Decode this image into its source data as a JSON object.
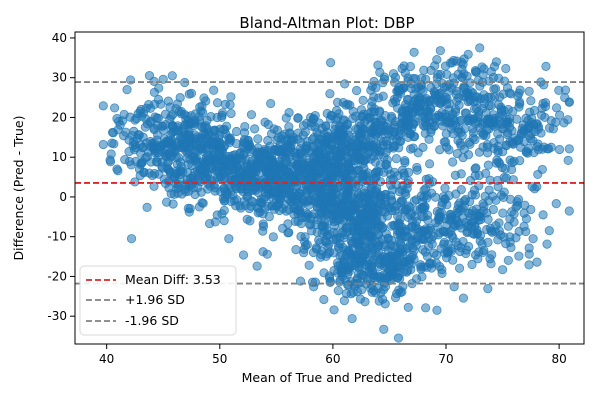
{
  "chart_data": {
    "type": "scatter",
    "title": "Bland-Altman Plot: DBP",
    "xlabel": "Mean of True and Predicted",
    "ylabel": "Difference (Pred - True)",
    "xlim": [
      37.2,
      82.2
    ],
    "ylim": [
      -37.0,
      41.5
    ],
    "x_ticks": [
      40,
      50,
      60,
      70,
      80
    ],
    "y_ticks": [
      -30,
      -20,
      -10,
      0,
      10,
      20,
      30,
      40
    ],
    "grid": false,
    "legend_position": "bottom-left",
    "point_color": "#1f77b4",
    "point_alpha": 0.55,
    "reference_lines": [
      {
        "name": "Mean Diff: 3.53",
        "y": 3.53,
        "color": "#d62728",
        "style": "dashed"
      },
      {
        "name": "+1.96 SD",
        "y": 28.9,
        "color": "#808080",
        "style": "dashed"
      },
      {
        "name": "-1.96 SD",
        "y": -21.8,
        "color": "#808080",
        "style": "dashed"
      }
    ],
    "points_note": "",
    "points": [
      [
        40.4,
        10.8
      ],
      [
        40.7,
        22.4
      ],
      [
        40.3,
        9.3
      ],
      [
        41.5,
        15.4
      ],
      [
        41.2,
        18.1
      ],
      [
        41.8,
        27.0
      ],
      [
        42.2,
        -10.5
      ],
      [
        41.6,
        9.4
      ],
      [
        42.5,
        13.2
      ],
      [
        42.8,
        15.7
      ],
      [
        43.1,
        20.3
      ],
      [
        43.5,
        22.3
      ],
      [
        42.4,
        16.5
      ],
      [
        43.0,
        8.2
      ],
      [
        43.9,
        12.6
      ],
      [
        44.2,
        17.3
      ],
      [
        44.6,
        27.4
      ],
      [
        44.3,
        11.1
      ],
      [
        45.0,
        29.6
      ],
      [
        45.2,
        18.2
      ],
      [
        45.4,
        14.1
      ],
      [
        45.6,
        22.6
      ],
      [
        45.8,
        30.5
      ],
      [
        46.1,
        12.8
      ],
      [
        46.3,
        17.9
      ],
      [
        46.6,
        21.5
      ],
      [
        46.9,
        28.8
      ],
      [
        47.1,
        9.8
      ],
      [
        47.4,
        14.6
      ],
      [
        47.8,
        19.2
      ],
      [
        45.1,
        4.5
      ],
      [
        45.3,
        -1.3
      ],
      [
        45.7,
        0.8
      ],
      [
        46.2,
        2.1
      ],
      [
        46.5,
        5.6
      ],
      [
        47.0,
        1.3
      ],
      [
        47.3,
        -3.8
      ],
      [
        47.7,
        4.2
      ],
      [
        48.2,
        -2.5
      ],
      [
        48.6,
        24.9
      ],
      [
        49.1,
        -6.7
      ],
      [
        49.5,
        3.0
      ],
      [
        48.8,
        9.0
      ],
      [
        49.3,
        14.0
      ],
      [
        49.8,
        23.7
      ],
      [
        50.1,
        12.0
      ],
      [
        50.6,
        17.8
      ],
      [
        51.0,
        21.0
      ],
      [
        50.4,
        -3.4
      ],
      [
        50.8,
        -10.5
      ],
      [
        51.3,
        -1.0
      ],
      [
        51.8,
        6.3
      ],
      [
        52.1,
        10.5
      ],
      [
        52.5,
        14.2
      ],
      [
        52.8,
        20.7
      ],
      [
        53.1,
        3.9
      ],
      [
        53.4,
        -4.0
      ],
      [
        53.8,
        -8.6
      ],
      [
        54.2,
        -14.4
      ],
      [
        54.6,
        -2.2
      ],
      [
        52.1,
        -14.6
      ],
      [
        53.3,
        -17.4
      ],
      [
        54.0,
        18.8
      ],
      [
        54.5,
        23.5
      ],
      [
        55.0,
        7.2
      ],
      [
        55.4,
        11.9
      ],
      [
        55.8,
        2.6
      ],
      [
        56.1,
        -3.2
      ],
      [
        56.5,
        15.0
      ],
      [
        56.9,
        19.8
      ],
      [
        57.2,
        -6.7
      ],
      [
        57.5,
        -11.3
      ],
      [
        57.9,
        -17.2
      ],
      [
        58.3,
        -22.6
      ],
      [
        58.0,
        4.8
      ],
      [
        58.6,
        9.3
      ],
      [
        59.0,
        14.4
      ],
      [
        59.4,
        -1.6
      ],
      [
        59.8,
        33.8
      ],
      [
        59.2,
        -25.8
      ],
      [
        60.1,
        -18.5
      ],
      [
        60.5,
        -12.4
      ],
      [
        60.9,
        17.0
      ],
      [
        61.3,
        2.3
      ],
      [
        61.7,
        -30.6
      ],
      [
        61.2,
        -24.3
      ],
      [
        61.5,
        7.0
      ],
      [
        62.0,
        12.6
      ],
      [
        62.3,
        -7.9
      ],
      [
        62.7,
        -19.7
      ],
      [
        63.1,
        -14.3
      ],
      [
        63.4,
        21.4
      ],
      [
        63.8,
        4.9
      ],
      [
        64.1,
        -26.2
      ],
      [
        64.5,
        -33.3
      ],
      [
        64.2,
        11.5
      ],
      [
        64.8,
        18.2
      ],
      [
        65.2,
        -3.4
      ],
      [
        65.5,
        -16.3
      ],
      [
        65.8,
        -35.5
      ],
      [
        66.1,
        -23.9
      ],
      [
        66.4,
        31.2
      ],
      [
        66.7,
        6.2
      ],
      [
        67.0,
        -11.1
      ],
      [
        67.4,
        -20.6
      ],
      [
        67.8,
        27.1
      ],
      [
        68.2,
        -27.9
      ],
      [
        68.5,
        14.5
      ],
      [
        68.9,
        24.4
      ],
      [
        69.2,
        -28.5
      ],
      [
        69.0,
        33.0
      ],
      [
        69.5,
        36.8
      ],
      [
        69.9,
        -14.1
      ],
      [
        70.3,
        28.4
      ],
      [
        70.6,
        20.8
      ],
      [
        71.0,
        10.9
      ],
      [
        71.3,
        -3.3
      ],
      [
        71.6,
        34.7
      ],
      [
        71.9,
        26.3
      ],
      [
        72.3,
        -17.0
      ],
      [
        72.6,
        31.8
      ],
      [
        72.9,
        2.8
      ],
      [
        73.2,
        16.2
      ],
      [
        73.6,
        -8.2
      ],
      [
        74.0,
        31.5
      ],
      [
        74.3,
        25.1
      ],
      [
        74.6,
        11.2
      ],
      [
        75.0,
        -18.3
      ],
      [
        75.4,
        19.6
      ],
      [
        75.8,
        6.9
      ],
      [
        76.1,
        14.8
      ],
      [
        76.5,
        23.9
      ],
      [
        76.9,
        -7.4
      ],
      [
        77.3,
        12.2
      ],
      [
        77.7,
        -10.5
      ],
      [
        78.0,
        18.3
      ],
      [
        78.4,
        16.1
      ],
      [
        79.3,
        12.5
      ],
      [
        79.7,
        18.8
      ],
      [
        80.5,
        25.0
      ],
      [
        80.8,
        9.2
      ],
      [
        78.8,
        23.7
      ],
      [
        77.5,
        24.2
      ],
      [
        73.9,
        4.2
      ],
      [
        70.7,
        -6.9
      ]
    ]
  },
  "legend": [
    {
      "label": "Mean Diff: 3.53",
      "color": "#d62728"
    },
    {
      "label": "+1.96 SD",
      "color": "#808080"
    },
    {
      "label": "-1.96 SD",
      "color": "#808080"
    }
  ]
}
